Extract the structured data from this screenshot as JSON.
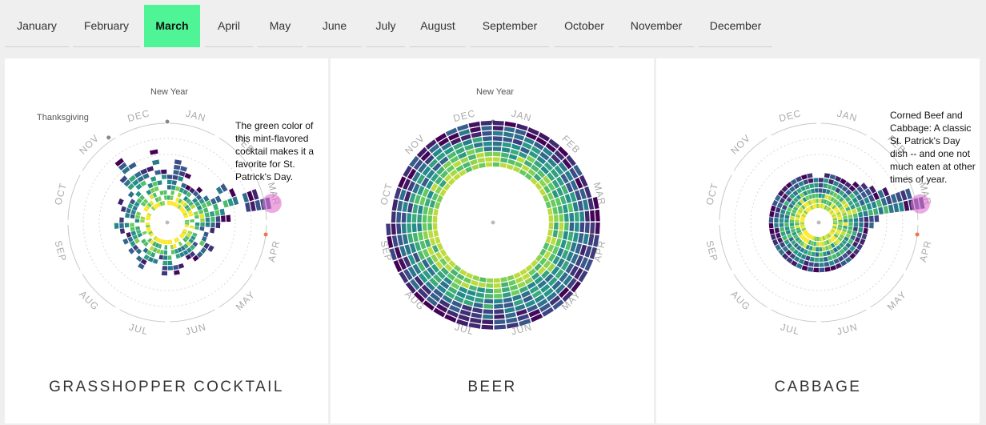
{
  "months_nav": {
    "active": "March",
    "items": [
      "January",
      "February",
      "March",
      "April",
      "May",
      "June",
      "July",
      "August",
      "September",
      "October",
      "November",
      "December"
    ]
  },
  "colors": {
    "active_tab": "#4ef495",
    "scale_low": "#440154",
    "scale_mid": "#21908d",
    "scale_high": "#fde725",
    "highlight": "#e36fd0",
    "marker": "#f0754a"
  },
  "month_labels": [
    "JAN",
    "FEB",
    "MAR",
    "APR",
    "MAY",
    "JUN",
    "JUL",
    "AUG",
    "SEP",
    "OCT",
    "NOV",
    "DEC"
  ],
  "chart_data": [
    {
      "type": "radial-heatmap",
      "title": "GRASSHOPPER COCKTAIL",
      "annotations": [
        {
          "name": "new-year",
          "text": "New Year"
        },
        {
          "name": "thanksgiving",
          "text": "Thanksgiving"
        },
        {
          "name": "callout",
          "text": "The green color of this mint-flavored cocktail makes it a favorite for St. Patrick's Day."
        }
      ],
      "highlight_week": 11,
      "marker_week": 14,
      "weekly_ring_count": [
        6,
        9,
        8,
        7,
        5,
        6,
        6,
        5,
        10,
        12,
        16,
        18,
        9,
        7,
        6,
        6,
        5,
        8,
        6,
        7,
        6,
        5,
        4,
        6,
        7,
        6,
        8,
        5,
        6,
        5,
        7,
        6,
        5,
        6,
        7,
        6,
        5,
        6,
        8,
        6,
        5,
        6,
        7,
        5,
        6,
        9,
        12,
        10,
        9,
        8,
        11,
        7
      ]
    },
    {
      "type": "radial-heatmap",
      "title": "BEER",
      "annotations": [
        {
          "name": "new-year",
          "text": "New Year"
        }
      ],
      "marker_week": 14,
      "weekly_ring_count": [
        9,
        9,
        9,
        9,
        9,
        9,
        9,
        9,
        9,
        9,
        9,
        10,
        10,
        10,
        10,
        10,
        10,
        10,
        10,
        10,
        10,
        10,
        10,
        10,
        10,
        10,
        10,
        10,
        10,
        10,
        10,
        10,
        10,
        10,
        10,
        10,
        10,
        10,
        10,
        9,
        9,
        9,
        9,
        9,
        9,
        9,
        9,
        9,
        9,
        9,
        9,
        9
      ]
    },
    {
      "type": "radial-heatmap",
      "title": "CABBAGE",
      "annotations": [
        {
          "name": "callout",
          "text": "Corned Beef and Cabbage: A classic St. Patrick's Day dish -- and one not much eaten at other times of year."
        }
      ],
      "highlight_week": 11,
      "marker_week": 14,
      "weekly_ring_count": [
        6,
        7,
        7,
        7,
        7,
        7,
        8,
        9,
        10,
        12,
        16,
        18,
        9,
        8,
        7,
        7,
        7,
        7,
        7,
        7,
        7,
        7,
        7,
        7,
        7,
        7,
        7,
        7,
        7,
        7,
        7,
        7,
        7,
        7,
        7,
        7,
        7,
        7,
        7,
        7,
        7,
        7,
        7,
        7,
        7,
        7,
        7,
        7,
        7,
        7,
        7,
        6
      ]
    }
  ]
}
